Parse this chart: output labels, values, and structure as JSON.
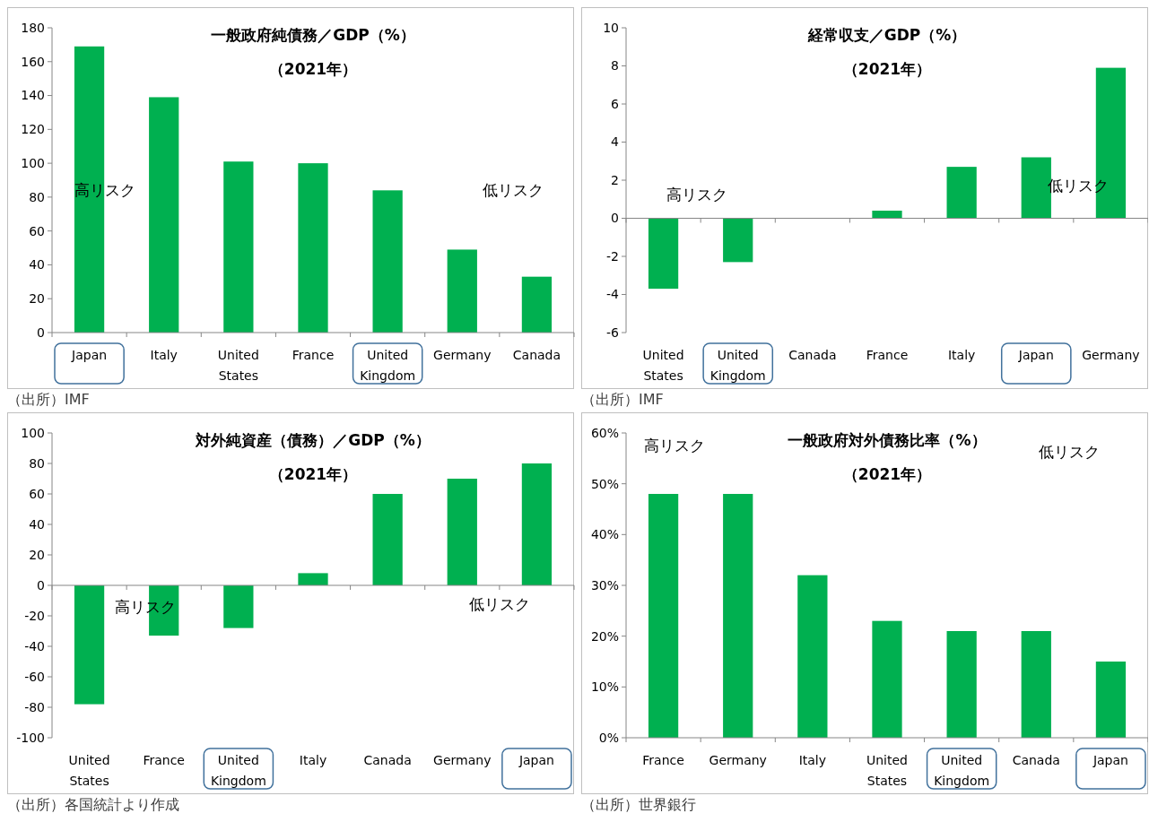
{
  "chart_data": [
    {
      "type": "bar",
      "title": "一般政府純債務／GDP（%）",
      "subtitle": "（2021年）",
      "categories": [
        "Japan",
        "Italy",
        "United States",
        "France",
        "United Kingdom",
        "Germany",
        "Canada"
      ],
      "series": [
        {
          "color": "#00b050",
          "values": [
            169,
            139,
            101,
            100,
            84,
            49,
            33
          ]
        }
      ],
      "ylim": [
        0,
        180
      ],
      "yticks": [
        0,
        20,
        40,
        60,
        80,
        100,
        120,
        140,
        160,
        180
      ],
      "annotations": [
        "高リスク",
        "低リスク",
        "（出所）IMF"
      ]
    },
    {
      "type": "bar",
      "title": "経常収支／GDP（%）",
      "subtitle": "（2021年）",
      "categories": [
        "United States",
        "United Kingdom",
        "Canada",
        "France",
        "Italy",
        "Japan",
        "Germany"
      ],
      "series": [
        {
          "color": "#00b050",
          "values": [
            -3.7,
            -2.3,
            0,
            0.4,
            2.7,
            3.2,
            7.9
          ]
        }
      ],
      "ylim": [
        -6,
        10
      ],
      "yticks": [
        -6,
        -4,
        -2,
        0,
        2,
        4,
        6,
        8,
        10
      ],
      "annotations": [
        "高リスク",
        "低リスク",
        "（出所）IMF"
      ]
    },
    {
      "type": "bar",
      "title": "対外純資産（債務）／GDP（%）",
      "subtitle": "（2021年）",
      "categories": [
        "United States",
        "France",
        "United Kingdom",
        "Italy",
        "Canada",
        "Germany",
        "Japan"
      ],
      "series": [
        {
          "color": "#00b050",
          "values": [
            -78,
            -33,
            -28,
            8,
            60,
            70,
            80
          ]
        }
      ],
      "ylim": [
        -100,
        100
      ],
      "yticks": [
        -100,
        -80,
        -60,
        -40,
        -20,
        0,
        20,
        40,
        60,
        80,
        100
      ],
      "annotations": [
        "高リスク",
        "低リスク",
        "（出所）各国統計より作成"
      ]
    },
    {
      "type": "bar",
      "title": "一般政府対外債務比率（%）",
      "subtitle": "（2021年）",
      "categories": [
        "France",
        "Germany",
        "Italy",
        "United States",
        "United Kingdom",
        "Canada",
        "Japan"
      ],
      "series": [
        {
          "color": "#00b050",
          "values": [
            48,
            48,
            32,
            23,
            21,
            21,
            15
          ]
        }
      ],
      "ylim": [
        0,
        60
      ],
      "yticks": [
        {
          "value": 0,
          "label": "0%"
        },
        {
          "value": 10,
          "label": "10%"
        },
        {
          "value": 20,
          "label": "20%"
        },
        {
          "value": 30,
          "label": "30%"
        },
        {
          "value": 40,
          "label": "40%"
        },
        {
          "value": 50,
          "label": "50%"
        },
        {
          "value": 60,
          "label": "60%"
        }
      ],
      "annotations": [
        "高リスク",
        "低リスク",
        "（出所）世界銀行"
      ]
    }
  ]
}
